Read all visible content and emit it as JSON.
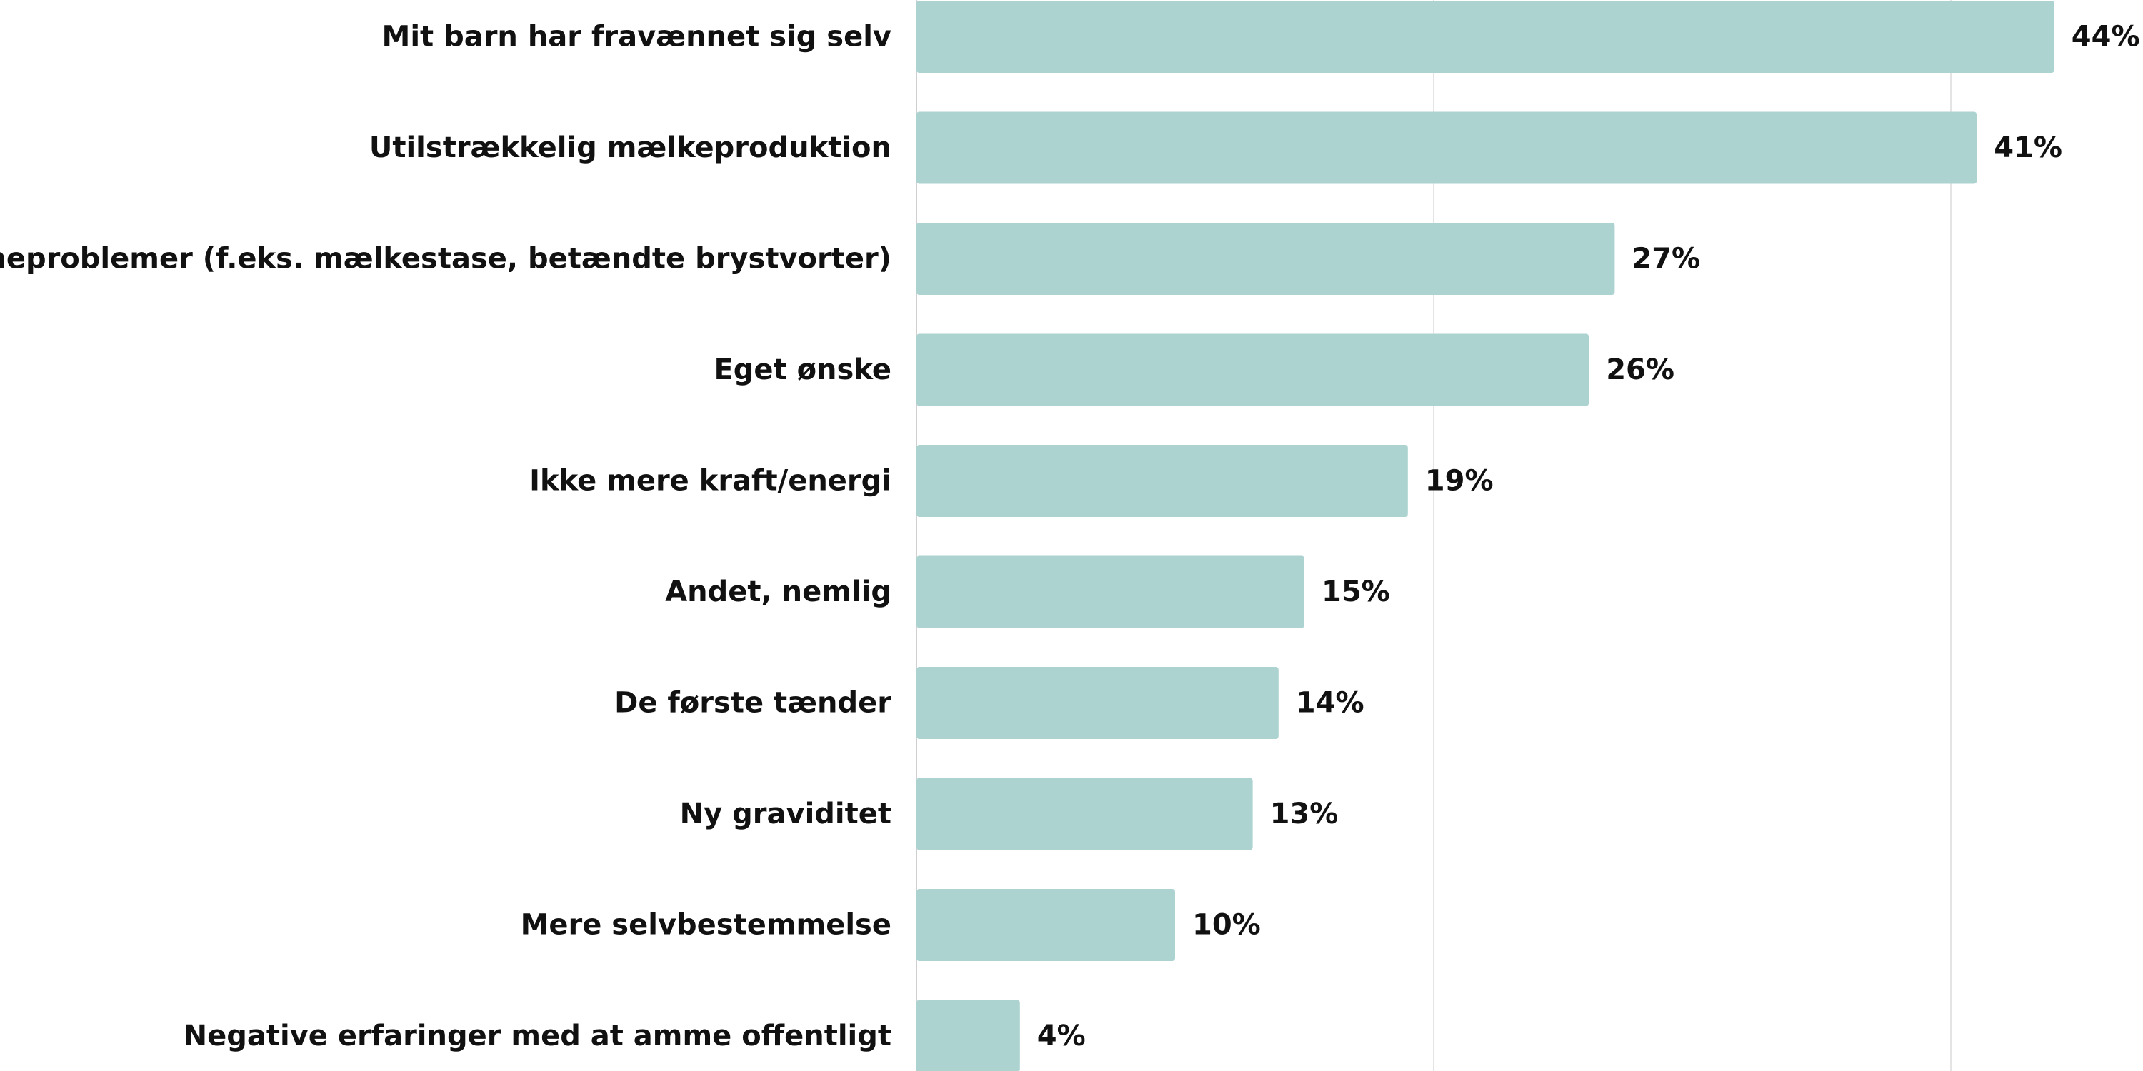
{
  "chart_data": {
    "type": "bar",
    "orientation": "horizontal",
    "title": "",
    "xlabel": "",
    "ylabel": "",
    "categories": [
      "Mit barn har fravænnet sig selv",
      "Utilstrækkelig mælkeproduktion",
      "Ammeproblemer (f.eks. mælkestase, betændte brystvorter)",
      "Eget ønske",
      "Ikke mere kraft/energi",
      "Andet, nemlig",
      "De første tænder",
      "Ny graviditet",
      "Mere selvbestemmelse",
      "Negative erfaringer med at amme offentligt"
    ],
    "values": [
      44,
      41,
      27,
      26,
      19,
      15,
      14,
      13,
      10,
      4
    ],
    "value_labels": [
      "44%",
      "41%",
      "27%",
      "26%",
      "19%",
      "15%",
      "14%",
      "13%",
      "10%",
      "4%"
    ],
    "xlim": [
      0,
      44
    ],
    "gridlines_at": [
      0,
      20,
      40
    ],
    "grid": true,
    "bar_color": "#acd3d0",
    "text_color": "#111111",
    "grid_color": "#e4e4e4"
  }
}
